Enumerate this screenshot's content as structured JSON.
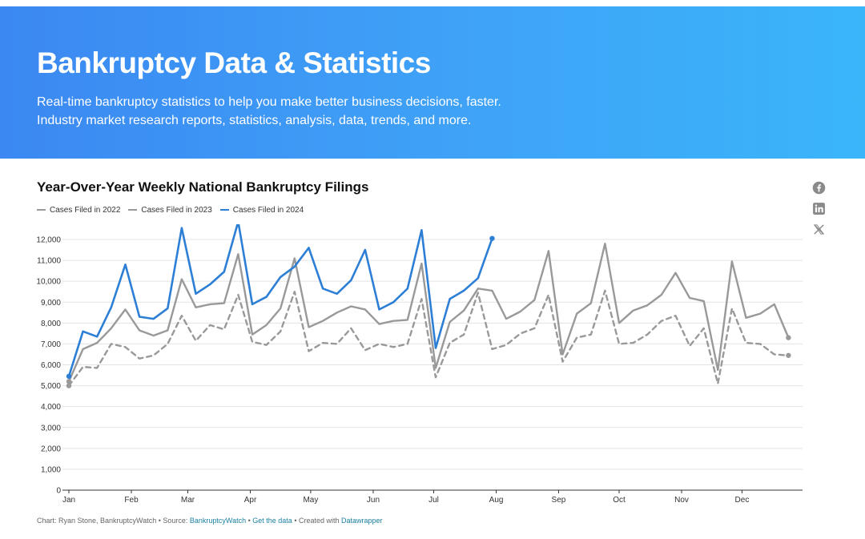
{
  "hero": {
    "title": "Bankruptcy Data & Statistics",
    "subtitle_line1": "Real-time bankruptcy statistics to help you make better business decisions, faster.",
    "subtitle_line2": "Industry market research reports, statistics, analysis, data, trends, and more."
  },
  "social": {
    "icons": [
      "facebook-icon",
      "linkedin-icon",
      "x-icon"
    ],
    "color": "#888888"
  },
  "footer": {
    "prefix": "Chart: Ryan Stone, BankruptcyWatch • Source: ",
    "source_link": "BankruptcyWatch",
    "sep1": " • ",
    "data_link": "Get the data",
    "sep2": " • Created with ",
    "created_link": "Datawrapper"
  },
  "chart_data": {
    "type": "line",
    "title": "Year-Over-Year Weekly National Bankruptcy Filings",
    "xlabel": "",
    "ylabel": "",
    "ylim": [
      0,
      12000
    ],
    "yticks": [
      0,
      1000,
      2000,
      3000,
      4000,
      5000,
      6000,
      7000,
      8000,
      9000,
      10000,
      11000,
      12000
    ],
    "ytick_labels": [
      "0",
      "1,000",
      "2,000",
      "3,000",
      "4,000",
      "5,000",
      "6,000",
      "7,000",
      "8,000",
      "9,000",
      "10,000",
      "11,000",
      "12,000"
    ],
    "x_unit": "week of year",
    "xlim": [
      1,
      53
    ],
    "month_ticks": [
      {
        "label": "Jan",
        "week": 1
      },
      {
        "label": "Feb",
        "week": 5.43
      },
      {
        "label": "Mar",
        "week": 9.43
      },
      {
        "label": "Apr",
        "week": 13.86
      },
      {
        "label": "May",
        "week": 18.14
      },
      {
        "label": "Jun",
        "week": 22.57
      },
      {
        "label": "Jul",
        "week": 26.86
      },
      {
        "label": "Aug",
        "week": 31.29
      },
      {
        "label": "Sep",
        "week": 35.71
      },
      {
        "label": "Oct",
        "week": 40
      },
      {
        "label": "Nov",
        "week": 44.43
      },
      {
        "label": "Dec",
        "week": 48.71
      }
    ],
    "grid": true,
    "legend_position": "top-left",
    "series": [
      {
        "name": "Cases Filed in 2022",
        "color": "#999999",
        "dashed": true,
        "values": [
          5000,
          5900,
          5850,
          7000,
          6850,
          6300,
          6450,
          7000,
          8350,
          7150,
          7900,
          7700,
          9350,
          7100,
          6950,
          7600,
          9500,
          6650,
          7050,
          7000,
          7750,
          6700,
          7000,
          6850,
          7000,
          9150,
          5400,
          7050,
          7450,
          9450,
          6750,
          6950,
          7500,
          7750,
          9350,
          6150,
          7300,
          7450,
          9550,
          7000,
          7050,
          7450,
          8100,
          8350,
          6900,
          7750,
          5100,
          8700,
          7050,
          7000,
          6500,
          6450
        ]
      },
      {
        "name": "Cases Filed in 2023",
        "color": "#999999",
        "dashed": false,
        "values": [
          5200,
          6750,
          7050,
          7750,
          8650,
          7650,
          7400,
          7650,
          10100,
          8750,
          8900,
          8950,
          11300,
          7450,
          7900,
          8700,
          11100,
          7800,
          8100,
          8500,
          8800,
          8650,
          7950,
          8100,
          8150,
          10850,
          5850,
          8050,
          8600,
          9650,
          9550,
          8200,
          8550,
          9100,
          11450,
          6500,
          8450,
          8950,
          11800,
          8000,
          8600,
          8850,
          9350,
          10400,
          9200,
          9050,
          5750,
          10950,
          8250,
          8450,
          8900,
          7300
        ]
      },
      {
        "name": "Cases Filed in 2024",
        "color": "#2d7fd6",
        "dashed": false,
        "values": [
          5450,
          7600,
          7350,
          8750,
          10800,
          8300,
          8200,
          8700,
          12550,
          9400,
          9850,
          10450,
          12850,
          8900,
          9250,
          10200,
          10700,
          11600,
          9650,
          9400,
          10050,
          11500,
          8650,
          9000,
          9650,
          12450,
          6800,
          9150,
          9550,
          10150,
          12050
        ]
      }
    ]
  }
}
